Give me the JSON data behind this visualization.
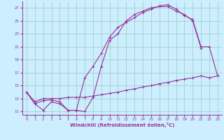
{
  "xlabel": "Windchill (Refroidissement éolien,°C)",
  "bg_color": "#cceeff",
  "line_color": "#993399",
  "grid_color": "#99ccbb",
  "x_ticks": [
    0,
    1,
    2,
    3,
    4,
    5,
    6,
    7,
    8,
    9,
    10,
    11,
    12,
    13,
    14,
    15,
    16,
    17,
    18,
    19,
    20,
    21,
    22,
    23
  ],
  "y_ticks": [
    11,
    13,
    15,
    17,
    19,
    21,
    23,
    25,
    27
  ],
  "xlim": [
    -0.5,
    23.5
  ],
  "ylim": [
    10.5,
    28.0
  ],
  "line1_x": [
    0,
    1,
    2,
    3,
    4,
    5,
    6,
    7,
    8,
    9,
    10,
    11,
    12,
    13,
    14,
    15,
    16,
    17,
    18,
    19,
    20,
    21
  ],
  "line1_y": [
    14.0,
    12.2,
    11.2,
    12.5,
    12.2,
    11.2,
    11.2,
    11.0,
    13.2,
    18.0,
    22.0,
    23.0,
    25.0,
    26.0,
    26.5,
    27.0,
    27.2,
    27.2,
    26.5,
    26.0,
    25.0,
    20.8
  ],
  "line2_x": [
    0,
    1,
    2,
    3,
    4,
    5,
    6,
    7,
    8,
    9,
    10,
    11,
    12,
    13,
    14,
    15,
    16,
    17,
    18,
    19,
    20,
    21,
    22,
    23
  ],
  "line2_y": [
    14.0,
    12.2,
    12.7,
    12.8,
    12.5,
    11.2,
    11.2,
    16.2,
    18.0,
    20.0,
    22.5,
    24.0,
    24.8,
    25.5,
    26.3,
    26.8,
    27.3,
    27.5,
    26.8,
    25.8,
    25.2,
    21.0,
    21.0,
    16.5
  ],
  "line3_x": [
    0,
    1,
    2,
    3,
    4,
    5,
    6,
    7,
    8,
    9,
    10,
    11,
    12,
    13,
    14,
    15,
    16,
    17,
    18,
    19,
    20,
    21,
    22,
    23
  ],
  "line3_y": [
    14.0,
    12.5,
    13.0,
    13.0,
    13.0,
    13.2,
    13.2,
    13.2,
    13.4,
    13.6,
    13.8,
    14.0,
    14.3,
    14.5,
    14.8,
    15.0,
    15.3,
    15.5,
    15.8,
    16.0,
    16.2,
    16.5,
    16.2,
    16.5
  ]
}
